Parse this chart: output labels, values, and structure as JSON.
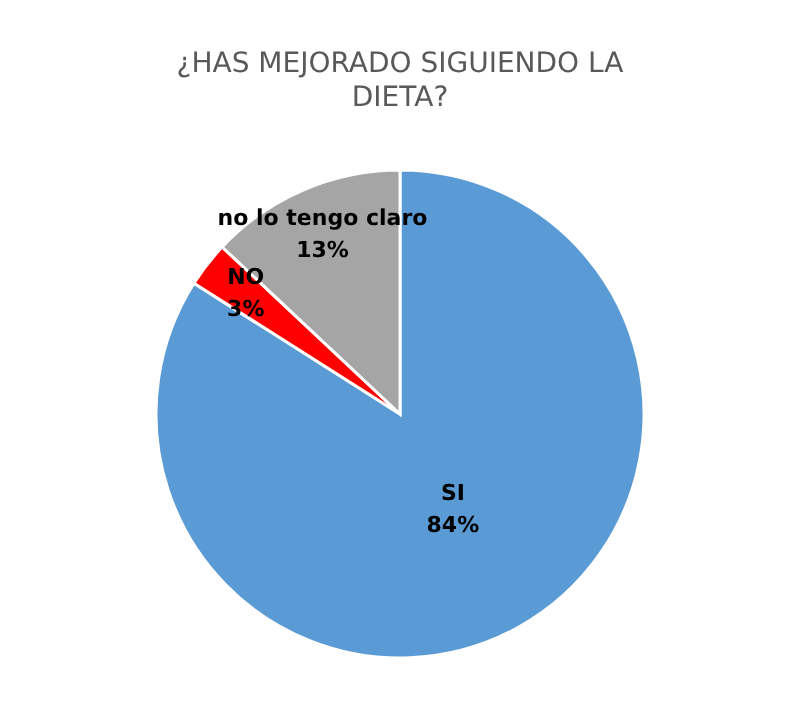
{
  "chart_data": {
    "type": "pie",
    "title": "¿HAS MEJORADO SIGUIENDO LA DIETA?",
    "categories": [
      "SI",
      "NO",
      "no lo tengo claro"
    ],
    "values": [
      84,
      3,
      13
    ],
    "colors": [
      "#5b9bd5",
      "#ff0000",
      "#a5a5a5"
    ],
    "value_labels": [
      "84%",
      "3%",
      "13%"
    ]
  }
}
